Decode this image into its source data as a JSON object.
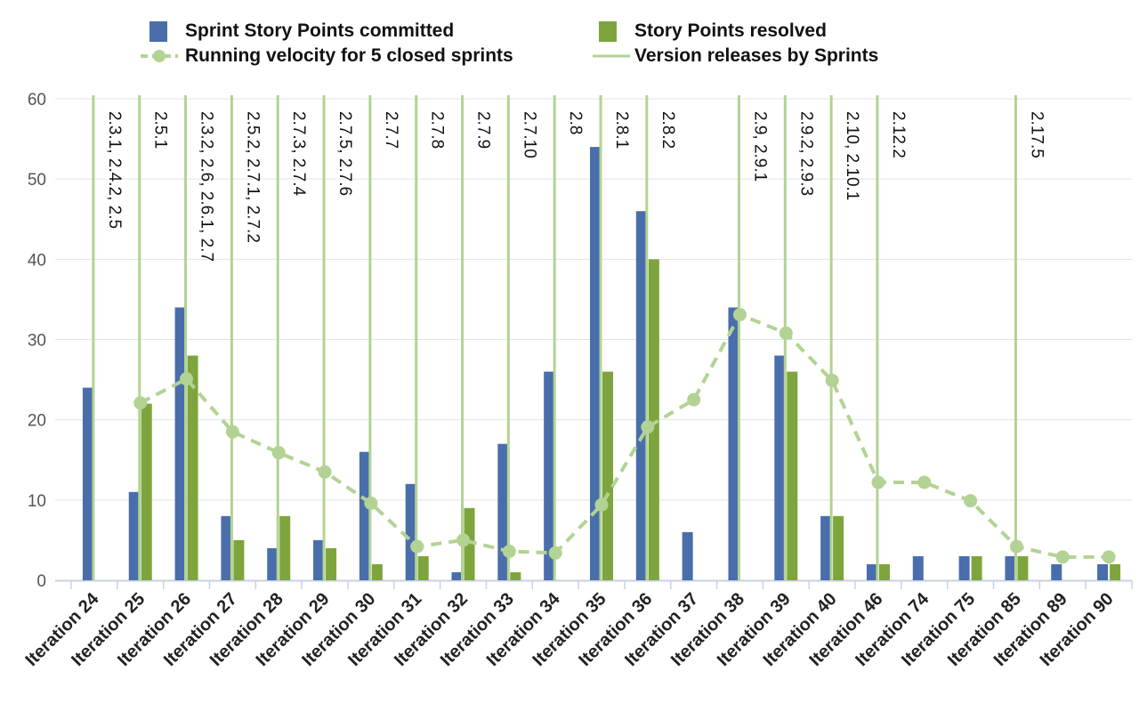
{
  "legend": {
    "committed": "Sprint Story Points committed",
    "resolved": "Story Points resolved",
    "velocity": "Running velocity for 5 closed sprints",
    "releases": "Version releases by Sprints"
  },
  "colors": {
    "committed": "#4a6eab",
    "resolved": "#7ea53d",
    "velocity": "#b2d393",
    "releases": "#b2d393",
    "grid": "#e0e4ea",
    "axis": "#c7d2e6",
    "tick_text": "#555555"
  },
  "chart_data": {
    "type": "bar",
    "title": "",
    "xlabel": "",
    "ylabel": "",
    "ylim": [
      0,
      60
    ],
    "yticks": [
      "0",
      "10",
      "20",
      "30",
      "40",
      "50",
      "60"
    ],
    "grid": true,
    "legend_position": "top",
    "categories": [
      "Iteration 24",
      "Iteration 25",
      "Iteration 26",
      "Iteration 27",
      "Iteration 28",
      "Iteration 29",
      "Iteration 30",
      "Iteration 31",
      "Iteration 32",
      "Iteration 33",
      "Iteration 34",
      "Iteration 35",
      "Iteration 36",
      "Iteration 37",
      "Iteration 38",
      "Iteration 39",
      "Iteration 40",
      "Iteration 46",
      "Iteration 74",
      "Iteration 75",
      "Iteration 85",
      "Iteration 89",
      "Iteration 90"
    ],
    "series": [
      {
        "name": "Sprint Story Points committed",
        "type": "bar",
        "values": [
          24,
          11,
          34,
          8,
          4,
          5,
          16,
          12,
          1,
          17,
          26,
          54,
          46,
          6,
          34,
          28,
          8,
          2,
          3,
          3,
          3,
          2,
          2
        ]
      },
      {
        "name": "Story Points resolved",
        "type": "bar",
        "values": [
          0,
          22,
          28,
          5,
          8,
          4,
          2,
          3,
          9,
          1,
          0,
          26,
          40,
          0,
          0,
          26,
          8,
          2,
          0,
          3,
          3,
          0,
          2
        ]
      },
      {
        "name": "Running velocity for 5 closed sprints",
        "type": "line",
        "values": [
          null,
          22.1,
          25.1,
          18.5,
          15.9,
          13.5,
          9.6,
          4.2,
          5.0,
          3.6,
          3.4,
          9.4,
          19.1,
          22.5,
          33.1,
          30.8,
          24.9,
          12.2,
          12.2,
          9.9,
          4.2,
          2.9,
          2.9
        ]
      }
    ],
    "releases": [
      {
        "category": "Iteration 24",
        "label": "2.3.1, 2.4.2, 2.5"
      },
      {
        "category": "Iteration 25",
        "label": "2.5.1"
      },
      {
        "category": "Iteration 26",
        "label": "2.3.2, 2.6, 2.6.1, 2.7"
      },
      {
        "category": "Iteration 27",
        "label": "2.5.2, 2.7.1, 2.7.2"
      },
      {
        "category": "Iteration 28",
        "label": "2.7.3, 2.7.4"
      },
      {
        "category": "Iteration 29",
        "label": "2.7.5, 2.7.6"
      },
      {
        "category": "Iteration 30",
        "label": "2.7.7"
      },
      {
        "category": "Iteration 31",
        "label": "2.7.8"
      },
      {
        "category": "Iteration 32",
        "label": "2.7.9"
      },
      {
        "category": "Iteration 33",
        "label": "2.7.10"
      },
      {
        "category": "Iteration 34",
        "label": "2.8"
      },
      {
        "category": "Iteration 35",
        "label": "2.8.1"
      },
      {
        "category": "Iteration 36",
        "label": "2.8.2"
      },
      {
        "category": "Iteration 38",
        "label": "2.9, 2.9.1"
      },
      {
        "category": "Iteration 39",
        "label": "2.9.2, 2.9.3"
      },
      {
        "category": "Iteration 40",
        "label": "2.10, 2.10.1"
      },
      {
        "category": "Iteration 46",
        "label": "2.12.2"
      },
      {
        "category": "Iteration 85",
        "label": "2.17.5"
      }
    ]
  }
}
